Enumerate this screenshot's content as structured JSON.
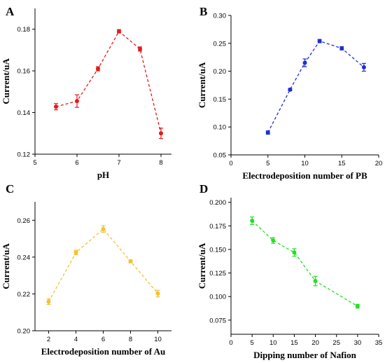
{
  "chart_data": [
    {
      "panel_label": "A",
      "type": "line",
      "color": "#e41a1c",
      "xlabel": "pH",
      "ylabel": "Current/uA",
      "xlim": [
        5,
        8.25
      ],
      "ylim": [
        0.12,
        0.19
      ],
      "xticks": [
        5,
        6,
        7,
        8
      ],
      "yticks": [
        0.12,
        0.14,
        0.16,
        0.18
      ],
      "ytick_labels": [
        "0.12",
        "0.14",
        "0.16",
        "0.18"
      ],
      "x": [
        5.5,
        6.0,
        6.5,
        7.0,
        7.5,
        8.0
      ],
      "y": [
        0.1428,
        0.1455,
        0.161,
        0.179,
        0.1705,
        0.13
      ],
      "err": [
        0.0015,
        0.003,
        0.001,
        0.0008,
        0.001,
        0.0025
      ],
      "grid": false
    },
    {
      "panel_label": "B",
      "type": "line",
      "color": "#1f2fd0",
      "xlabel": "Electrodeposition number of PB",
      "ylabel": "Current/uA",
      "xlim": [
        0,
        20
      ],
      "ylim": [
        0.05,
        0.3
      ],
      "xticks": [
        0,
        5,
        10,
        15,
        20
      ],
      "yticks": [
        0.05,
        0.1,
        0.15,
        0.2,
        0.25,
        0.3
      ],
      "ytick_labels": [
        "0.05",
        "0.10",
        "0.15",
        "0.20",
        "0.25",
        "0.30"
      ],
      "x": [
        5,
        8,
        10,
        12,
        15,
        18
      ],
      "y": [
        0.09,
        0.167,
        0.215,
        0.254,
        0.241,
        0.207
      ],
      "err": [
        0.003,
        0.002,
        0.007,
        0.003,
        0.003,
        0.007
      ],
      "grid": false
    },
    {
      "panel_label": "C",
      "type": "line",
      "color": "#f2c230",
      "xlabel": "Electrodeposition number of Au",
      "ylabel": "Current/uA",
      "xlim": [
        1,
        11
      ],
      "ylim": [
        0.2,
        0.27
      ],
      "xticks": [
        2,
        4,
        6,
        8,
        10
      ],
      "yticks": [
        0.2,
        0.22,
        0.24,
        0.26
      ],
      "ytick_labels": [
        "0.20",
        "0.22",
        "0.24",
        "0.26"
      ],
      "x": [
        2,
        4,
        6,
        8,
        10
      ],
      "y": [
        0.2158,
        0.2425,
        0.2552,
        0.2377,
        0.2202
      ],
      "err": [
        0.0015,
        0.0012,
        0.0018,
        0.0008,
        0.0018
      ],
      "grid": false
    },
    {
      "panel_label": "D",
      "type": "line",
      "color": "#22e022",
      "xlabel": "Dipping number of Nafion",
      "ylabel": "Current/uA",
      "xlim": [
        0,
        35
      ],
      "ylim": [
        0.06,
        0.205
      ],
      "xticks": [
        0,
        5,
        10,
        15,
        20,
        25,
        30,
        35
      ],
      "yticks": [
        0.075,
        0.1,
        0.125,
        0.15,
        0.175,
        0.2
      ],
      "ytick_labels": [
        "0.075",
        "0.100",
        "0.125",
        "0.150",
        "0.175",
        "0.200"
      ],
      "x": [
        5,
        10,
        15,
        20,
        30
      ],
      "y": [
        0.1805,
        0.1595,
        0.1468,
        0.1165,
        0.0898
      ],
      "err": [
        0.004,
        0.003,
        0.004,
        0.005,
        0.002
      ],
      "grid": false
    }
  ]
}
